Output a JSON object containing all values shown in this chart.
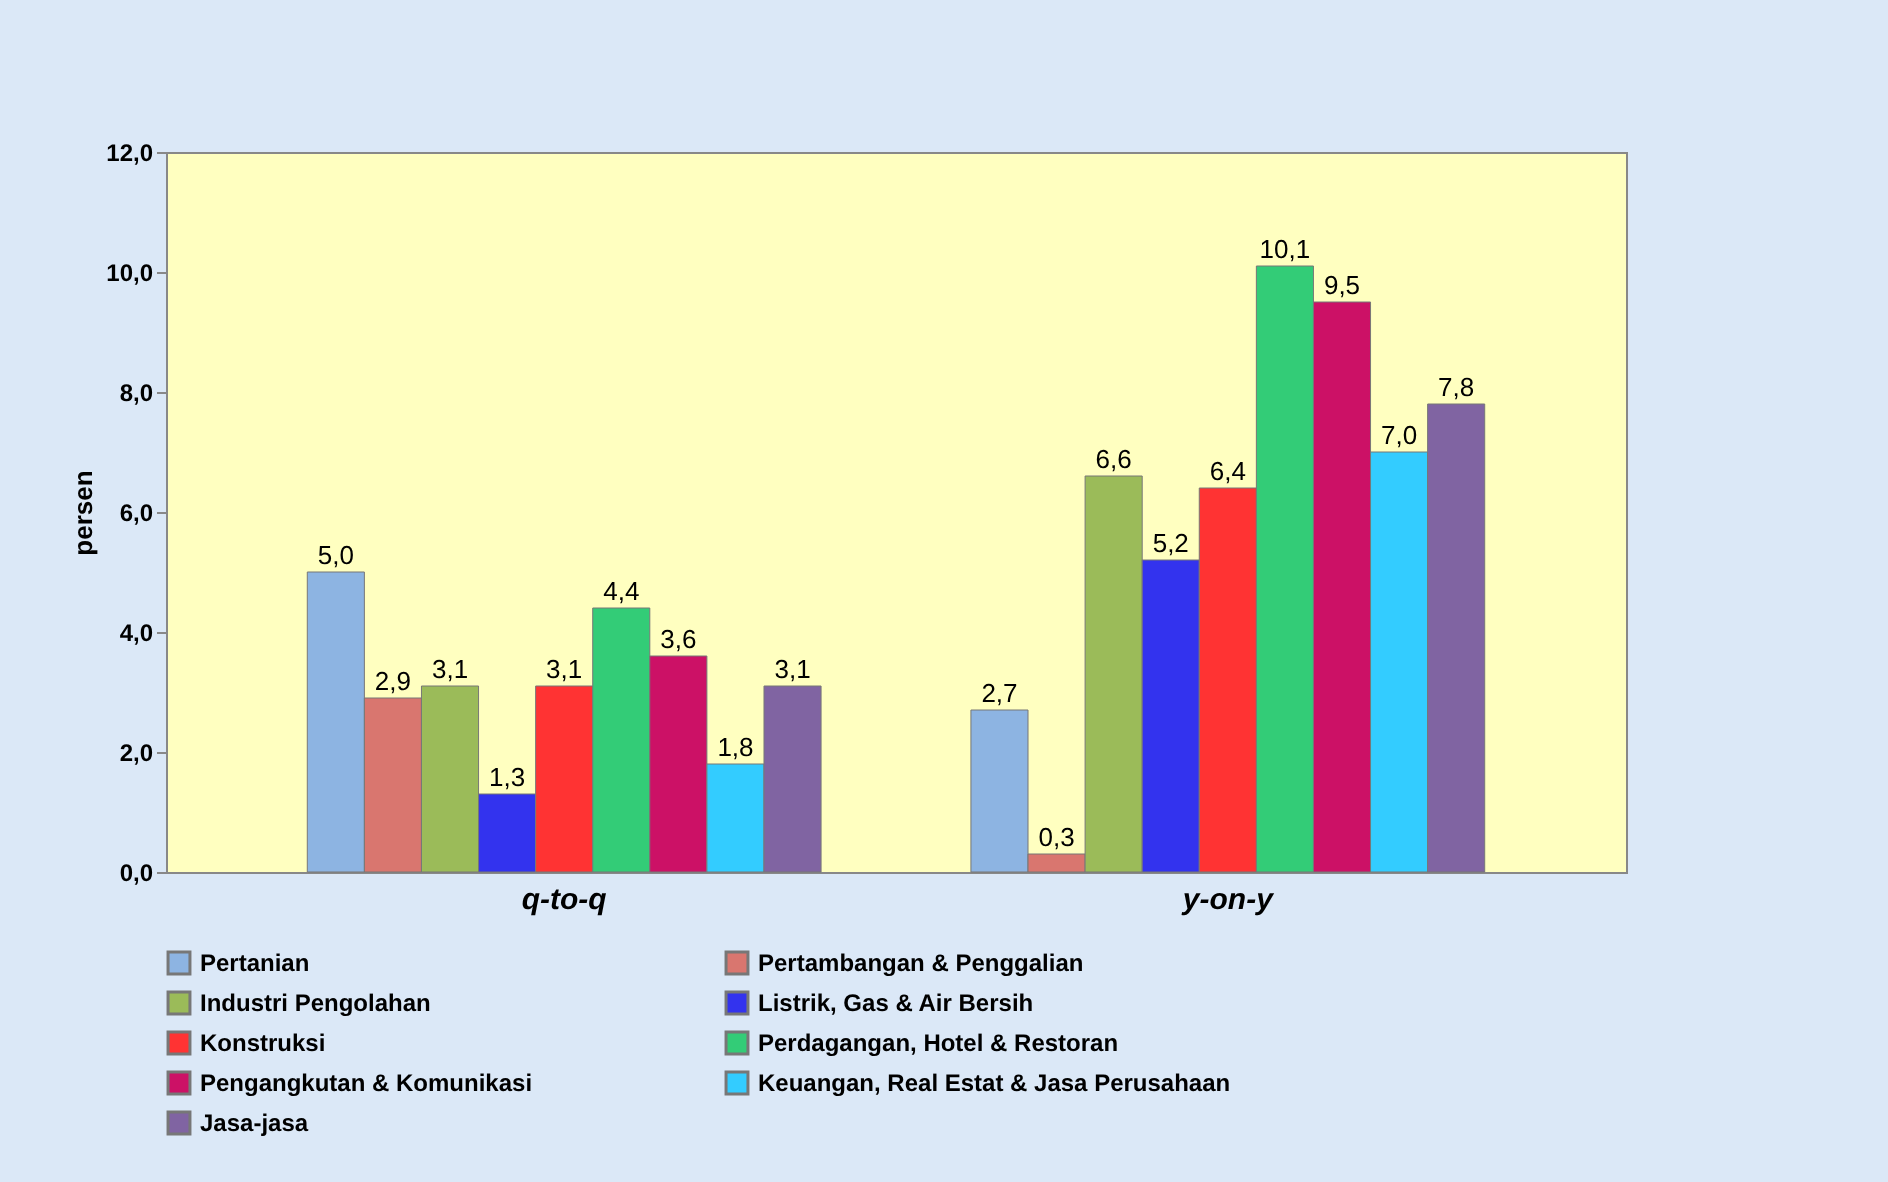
{
  "chart_data": {
    "type": "bar",
    "ylabel": "persen",
    "categories": [
      "q-to-q",
      "y-on-y"
    ],
    "series": [
      {
        "name": "Pertanian",
        "color": "#8db4e2",
        "values": [
          5.0,
          2.7
        ],
        "value_labels": [
          "5,0",
          "2,7"
        ]
      },
      {
        "name": "Pertambangan & Penggalian",
        "color": "#d9766f",
        "values": [
          2.9,
          0.3
        ],
        "value_labels": [
          "2,9",
          "0,3"
        ]
      },
      {
        "name": "Industri Pengolahan",
        "color": "#9bbb59",
        "values": [
          3.1,
          6.6
        ],
        "value_labels": [
          "3,1",
          "6,6"
        ]
      },
      {
        "name": "Listrik, Gas & Air Bersih",
        "color": "#3333ee",
        "values": [
          1.3,
          5.2
        ],
        "value_labels": [
          "1,3",
          "5,2"
        ]
      },
      {
        "name": "Konstruksi",
        "color": "#ff3333",
        "values": [
          3.1,
          6.4
        ],
        "value_labels": [
          "3,1",
          "6,4"
        ]
      },
      {
        "name": "Perdagangan,  Hotel & Restoran",
        "color": "#33cc77",
        "values": [
          4.4,
          10.1
        ],
        "value_labels": [
          "4,4",
          "10,1"
        ]
      },
      {
        "name": "Pengangkutan  & Komunikasi",
        "color": "#cc1166",
        "values": [
          3.6,
          9.5
        ],
        "value_labels": [
          "3,6",
          "9,5"
        ]
      },
      {
        "name": "Keuangan, Real Estat & Jasa Perusahaan",
        "color": "#33ccff",
        "values": [
          1.8,
          7.0
        ],
        "value_labels": [
          "1,8",
          "7,0"
        ]
      },
      {
        "name": "Jasa-jasa",
        "color": "#8064a2",
        "values": [
          3.1,
          7.8
        ],
        "value_labels": [
          "3,1",
          "7,8"
        ]
      }
    ],
    "ylim": [
      0,
      12
    ],
    "yticks": [
      {
        "value": 0,
        "label": "0,0"
      },
      {
        "value": 2,
        "label": "2,0"
      },
      {
        "value": 4,
        "label": "4,0"
      },
      {
        "value": 6,
        "label": "6,0"
      },
      {
        "value": 8,
        "label": "8,0"
      },
      {
        "value": 10,
        "label": "10,0"
      },
      {
        "value": 12,
        "label": "12,0"
      }
    ],
    "legend": "bottom"
  }
}
